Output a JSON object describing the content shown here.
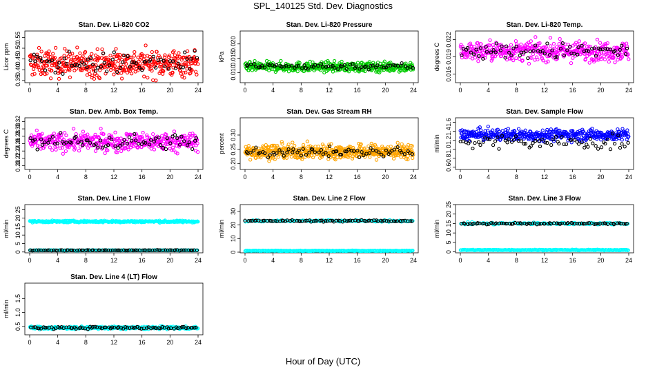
{
  "page": {
    "title": "SPL_140125  Std. Dev. Diagnostics",
    "xlabel": "Hour of Day (UTC)"
  },
  "chart_data": [
    {
      "type": "scatter",
      "title": "Stan. Dev. Li-820 CO2",
      "ylabel": "Licor ppm",
      "ylim": [
        0.34,
        0.58
      ],
      "yticks": [
        0.35,
        0.4,
        0.45,
        0.5,
        0.55
      ],
      "ytick_labels": [
        "0.35",
        "0.40",
        "0.45",
        "0.50",
        "0.55"
      ],
      "xlim": [
        0,
        24
      ],
      "xticks": [
        0,
        4,
        8,
        12,
        16,
        20,
        24
      ],
      "series": [
        {
          "color": "#ff0000",
          "baseline": 0.43,
          "spread": 0.045,
          "n": 420
        },
        {
          "color": "#000000",
          "baseline": 0.43,
          "spread": 0.035,
          "n": 70
        }
      ]
    },
    {
      "type": "scatter",
      "title": "Stan. Dev. Li-820 Pressure",
      "ylabel": "kPa",
      "ylim": [
        0.0065,
        0.0245
      ],
      "yticks": [
        0.01,
        0.015,
        0.02
      ],
      "ytick_labels": [
        "0.010",
        "0.015",
        "0.020"
      ],
      "xlim": [
        0,
        24
      ],
      "xticks": [
        0,
        4,
        8,
        12,
        16,
        20,
        24
      ],
      "series": [
        {
          "color": "#00cc00",
          "baseline": 0.012,
          "spread": 0.0012,
          "n": 420
        },
        {
          "color": "#000000",
          "baseline": 0.0122,
          "spread": 0.0008,
          "n": 70
        }
      ]
    },
    {
      "type": "scatter",
      "title": "Stan. Dev. Li-820 Temp.",
      "ylabel": "degrees C",
      "ylim": [
        0.0145,
        0.0235
      ],
      "yticks": [
        0.016,
        0.019,
        0.022
      ],
      "ytick_labels": [
        "0.016",
        "0.019",
        "0.022"
      ],
      "xlim": [
        0,
        24
      ],
      "xticks": [
        0,
        4,
        8,
        12,
        16,
        20,
        24
      ],
      "series": [
        {
          "color": "#ff00ff",
          "baseline": 0.02,
          "spread": 0.0012,
          "n": 420
        },
        {
          "color": "#000000",
          "baseline": 0.02,
          "spread": 0.001,
          "n": 70
        }
      ]
    },
    {
      "type": "scatter",
      "title": "Stan. Dev. Amb. Box Temp.",
      "ylabel": "degrees C",
      "ylim": [
        0.19,
        0.33
      ],
      "yticks": [
        0.2,
        0.22,
        0.24,
        0.26,
        0.28,
        0.3,
        0.32
      ],
      "ytick_labels": [
        "0.20",
        "0.22",
        "0.24",
        "0.26",
        "0.28",
        "0.30",
        "0.32"
      ],
      "xlim": [
        0,
        24
      ],
      "xticks": [
        0,
        4,
        8,
        12,
        16,
        20,
        24
      ],
      "series": [
        {
          "color": "#ff00ff",
          "baseline": 0.265,
          "spread": 0.018,
          "n": 420
        },
        {
          "color": "#000000",
          "baseline": 0.265,
          "spread": 0.015,
          "n": 70
        }
      ]
    },
    {
      "type": "scatter",
      "title": "Stan. Dev. Gas Stream RH",
      "ylabel": "percent",
      "ylim": [
        0.18,
        0.36
      ],
      "yticks": [
        0.2,
        0.25,
        0.3
      ],
      "ytick_labels": [
        "0.20",
        "0.25",
        "0.30"
      ],
      "xlim": [
        0,
        24
      ],
      "xticks": [
        0,
        4,
        8,
        12,
        16,
        20,
        24
      ],
      "series": [
        {
          "color": "#ffa500",
          "baseline": 0.242,
          "spread": 0.018,
          "n": 520
        },
        {
          "color": "#000000",
          "baseline": 0.24,
          "spread": 0.012,
          "n": 70
        }
      ]
    },
    {
      "type": "scatter",
      "title": "Stan. Dev. Sample Flow",
      "ylabel": "ml/min",
      "ylim": [
        0.55,
        1.7
      ],
      "yticks": [
        0.6,
        0.8,
        1.0,
        1.2,
        1.4,
        1.6
      ],
      "ytick_labels": [
        "0.6",
        "0.8",
        "1.0",
        "1.2",
        "1.4",
        "1.6"
      ],
      "xlim": [
        0,
        24
      ],
      "xticks": [
        0,
        4,
        8,
        12,
        16,
        20,
        24
      ],
      "series": [
        {
          "color": "#0000ff",
          "baseline": 1.32,
          "spread": 0.09,
          "n": 420
        },
        {
          "color": "#000000",
          "baseline": 1.15,
          "spread": 0.12,
          "n": 70
        }
      ]
    },
    {
      "type": "scatter",
      "title": "Stan. Dev. Line 1 Flow",
      "ylabel": "ml/min",
      "ylim": [
        -0.5,
        28
      ],
      "yticks": [
        0,
        5,
        10,
        15,
        20,
        25
      ],
      "ytick_labels": [
        "0",
        "5",
        "10",
        "15",
        "20",
        "25"
      ],
      "xlim": [
        0,
        24
      ],
      "xticks": [
        0,
        4,
        8,
        12,
        16,
        20,
        24
      ],
      "series": [
        {
          "color": "#00ffff",
          "baseline": 18,
          "spread": 0.4,
          "n": 320
        },
        {
          "color": "#00ffff",
          "baseline": 1,
          "spread": 0.1,
          "n": 160
        },
        {
          "color": "#000000",
          "baseline": 1,
          "spread": 0.1,
          "n": 80
        }
      ]
    },
    {
      "type": "scatter",
      "title": "Stan. Dev. Line 2 Flow",
      "ylabel": "ml/min",
      "ylim": [
        -0.5,
        35
      ],
      "yticks": [
        0,
        10,
        20,
        30
      ],
      "ytick_labels": [
        "0",
        "10",
        "20",
        "30"
      ],
      "xlim": [
        0,
        24
      ],
      "xticks": [
        0,
        4,
        8,
        12,
        16,
        20,
        24
      ],
      "series": [
        {
          "color": "#00ffff",
          "baseline": 1,
          "spread": 0.2,
          "n": 220
        },
        {
          "color": "#00ffff",
          "baseline": 23,
          "spread": 0.5,
          "n": 120
        },
        {
          "color": "#000000",
          "baseline": 23,
          "spread": 0.4,
          "n": 80
        }
      ]
    },
    {
      "type": "scatter",
      "title": "Stan. Dev. Line 3 Flow",
      "ylabel": "ml/min",
      "ylim": [
        -0.5,
        25
      ],
      "yticks": [
        0,
        5,
        10,
        15,
        20,
        25
      ],
      "ytick_labels": [
        "0",
        "5",
        "10",
        "15",
        "20",
        "25"
      ],
      "xlim": [
        0,
        24
      ],
      "xticks": [
        0,
        4,
        8,
        12,
        16,
        20,
        24
      ],
      "series": [
        {
          "color": "#00ffff",
          "baseline": 1,
          "spread": 0.15,
          "n": 220
        },
        {
          "color": "#00ffff",
          "baseline": 15,
          "spread": 0.4,
          "n": 120
        },
        {
          "color": "#000000",
          "baseline": 15,
          "spread": 0.3,
          "n": 80
        }
      ]
    },
    {
      "type": "scatter",
      "title": "Stan. Dev. Line 4 (LT) Flow",
      "ylabel": "ml/min",
      "ylim": [
        0.2,
        2.05
      ],
      "yticks": [
        0.5,
        1.0,
        1.5
      ],
      "ytick_labels": [
        "0.5",
        "1.0",
        "1.5"
      ],
      "xlim": [
        0,
        24
      ],
      "xticks": [
        0,
        4,
        8,
        12,
        16,
        20,
        24
      ],
      "series": [
        {
          "color": "#00ffff",
          "baseline": 0.45,
          "spread": 0.035,
          "n": 320
        },
        {
          "color": "#000000",
          "baseline": 0.45,
          "spread": 0.03,
          "n": 80
        }
      ]
    }
  ]
}
